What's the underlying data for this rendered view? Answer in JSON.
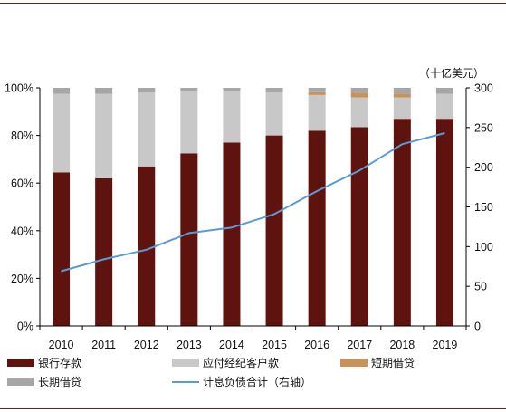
{
  "chart_data": {
    "type": "bar",
    "stacked": true,
    "categories": [
      "2010",
      "2011",
      "2012",
      "2013",
      "2014",
      "2015",
      "2016",
      "2017",
      "2018",
      "2019"
    ],
    "series": [
      {
        "name": "银行存款",
        "color": "#5e130e",
        "axis": "left",
        "values": [
          64.5,
          62,
          67,
          72.5,
          77,
          80,
          82,
          83.5,
          87,
          87
        ]
      },
      {
        "name": "应付经纪客户款",
        "color": "#c8c8c8",
        "axis": "left",
        "values": [
          33,
          35.5,
          31,
          26,
          21.5,
          18,
          15,
          12.5,
          9,
          10.5
        ]
      },
      {
        "name": "短期借贷",
        "color": "#c8935a",
        "axis": "left",
        "values": [
          0,
          0,
          0,
          0,
          0,
          0,
          1.2,
          2,
          1.5,
          0
        ]
      },
      {
        "name": "长期借贷",
        "color": "#a6a6a6",
        "axis": "left",
        "values": [
          2.5,
          2.5,
          2,
          1.5,
          1.5,
          2,
          1.8,
          2,
          2.5,
          2.5
        ]
      },
      {
        "name": "计息负债合计（右轴）",
        "type": "line",
        "color": "#5b9bd5",
        "axis": "right",
        "values": [
          69,
          84,
          96,
          117,
          124,
          141,
          170,
          196,
          229,
          243
        ]
      }
    ],
    "yleft": {
      "ticks": [
        "0%",
        "20%",
        "40%",
        "60%",
        "80%",
        "100%"
      ],
      "lim": [
        0,
        100
      ]
    },
    "yright": {
      "unit": "（十亿美元）",
      "ticks": [
        "0",
        "50",
        "100",
        "150",
        "200",
        "250",
        "300"
      ],
      "lim": [
        0,
        300
      ]
    },
    "legend_position": "bottom",
    "grid": false
  },
  "legend_row1": [
    "银行存款",
    "应付经纪客户款",
    "短期借贷"
  ],
  "legend_row2": [
    "长期借贷",
    "计息负债合计（右轴）"
  ]
}
